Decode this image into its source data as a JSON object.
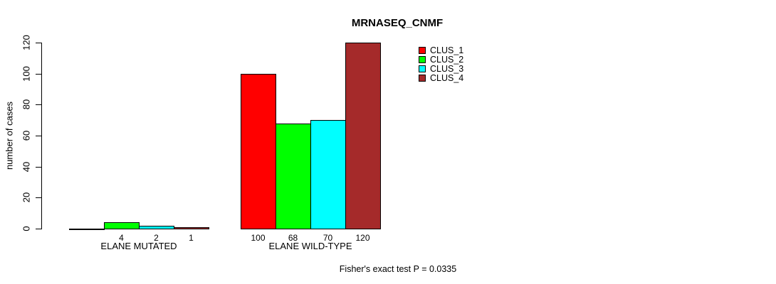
{
  "chart_data": {
    "type": "bar",
    "title": "MRNASEQ_CNMF",
    "ylabel": "number of cases",
    "ylim": [
      0,
      120
    ],
    "yticks": [
      0,
      20,
      40,
      60,
      80,
      100,
      120
    ],
    "grid": false,
    "categories": [
      "ELANE MUTATED",
      "ELANE WILD-TYPE"
    ],
    "series": [
      {
        "name": "CLUS_1",
        "color": "#FF0000",
        "values": [
          0,
          100
        ]
      },
      {
        "name": "CLUS_2",
        "color": "#00FF00",
        "values": [
          4,
          68
        ]
      },
      {
        "name": "CLUS_3",
        "color": "#00FFFF",
        "values": [
          2,
          70
        ]
      },
      {
        "name": "CLUS_4",
        "color": "#A52A2A",
        "values": [
          1,
          120
        ]
      }
    ],
    "bar_value_labels": [
      [
        "",
        "4",
        "2",
        "1"
      ],
      [
        "100",
        "68",
        "70",
        "120"
      ]
    ],
    "legend": {
      "position": "top-right"
    },
    "annotation": "Fisher's exact test P = 0.0335"
  }
}
